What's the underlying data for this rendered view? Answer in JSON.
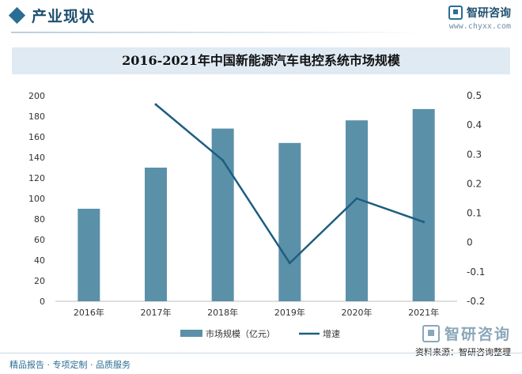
{
  "header": {
    "section_title": "产业现状",
    "brand_name": "智研咨询",
    "brand_url": "www.chyxx.com"
  },
  "chart_data": {
    "type": "bar",
    "title": "2016-2021年中国新能源汽车电控系统市场规模",
    "categories": [
      "2016年",
      "2017年",
      "2018年",
      "2019年",
      "2020年",
      "2021年"
    ],
    "series": [
      {
        "name": "市场规模（亿元）",
        "kind": "bar",
        "axis": "left",
        "color": "#5b90a9",
        "values": [
          90,
          130,
          168,
          154,
          176,
          187
        ]
      },
      {
        "name": "增速",
        "kind": "line",
        "axis": "right",
        "color": "#1d5e80",
        "values": [
          null,
          0.47,
          0.28,
          -0.07,
          0.15,
          0.07
        ]
      }
    ],
    "y_left": {
      "min": 0,
      "max": 200,
      "ticks": [
        "0",
        "20",
        "40",
        "60",
        "80",
        "100",
        "120",
        "140",
        "160",
        "180",
        "200"
      ]
    },
    "y_right": {
      "min": -0.2,
      "max": 0.5,
      "ticks": [
        "-0.2",
        "-0.1",
        "0",
        "0.1",
        "0.2",
        "0.3",
        "0.4",
        "0.5"
      ]
    },
    "grid": false,
    "legend_position": "bottom"
  },
  "footer": {
    "left_text": "精品报告 · 专项定制 · 品质服务",
    "brand_name": "智研咨询",
    "source": "资料来源：智研咨询整理"
  }
}
